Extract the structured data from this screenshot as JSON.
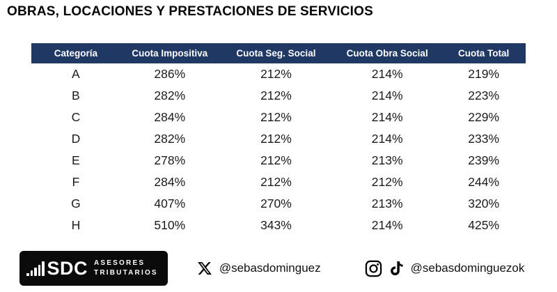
{
  "title": "OBRAS, LOCACIONES Y PRESTACIONES DE SERVICIOS",
  "chart_data": {
    "type": "table",
    "title": "OBRAS, LOCACIONES Y PRESTACIONES DE SERVICIOS",
    "columns": [
      "Categoría",
      "Cuota Impositiva",
      "Cuota Seg. Social",
      "Cuota Obra Social",
      "Cuota Total"
    ],
    "rows": [
      [
        "A",
        "286%",
        "212%",
        "214%",
        "219%"
      ],
      [
        "B",
        "282%",
        "212%",
        "214%",
        "223%"
      ],
      [
        "C",
        "284%",
        "212%",
        "214%",
        "229%"
      ],
      [
        "D",
        "282%",
        "212%",
        "214%",
        "233%"
      ],
      [
        "E",
        "278%",
        "212%",
        "213%",
        "239%"
      ],
      [
        "F",
        "284%",
        "212%",
        "212%",
        "244%"
      ],
      [
        "G",
        "407%",
        "270%",
        "213%",
        "320%"
      ],
      [
        "H",
        "510%",
        "343%",
        "214%",
        "425%"
      ]
    ],
    "layout": {
      "header_bg": "#1F3864",
      "header_text_color": "#FFFFFF",
      "body_text_color": "#1B1B1B",
      "grid": false
    }
  },
  "footer": {
    "logo": {
      "brand": "SDC",
      "tagline_line1": "ASESORES",
      "tagline_line2": "TRIBUTARIOS",
      "icon": "bar-chart-icon",
      "bg_color": "#0A0A0A"
    },
    "social": {
      "x_handle": "@sebasdominguez",
      "ig_tiktok_handle": "@sebasdominguezok"
    }
  }
}
